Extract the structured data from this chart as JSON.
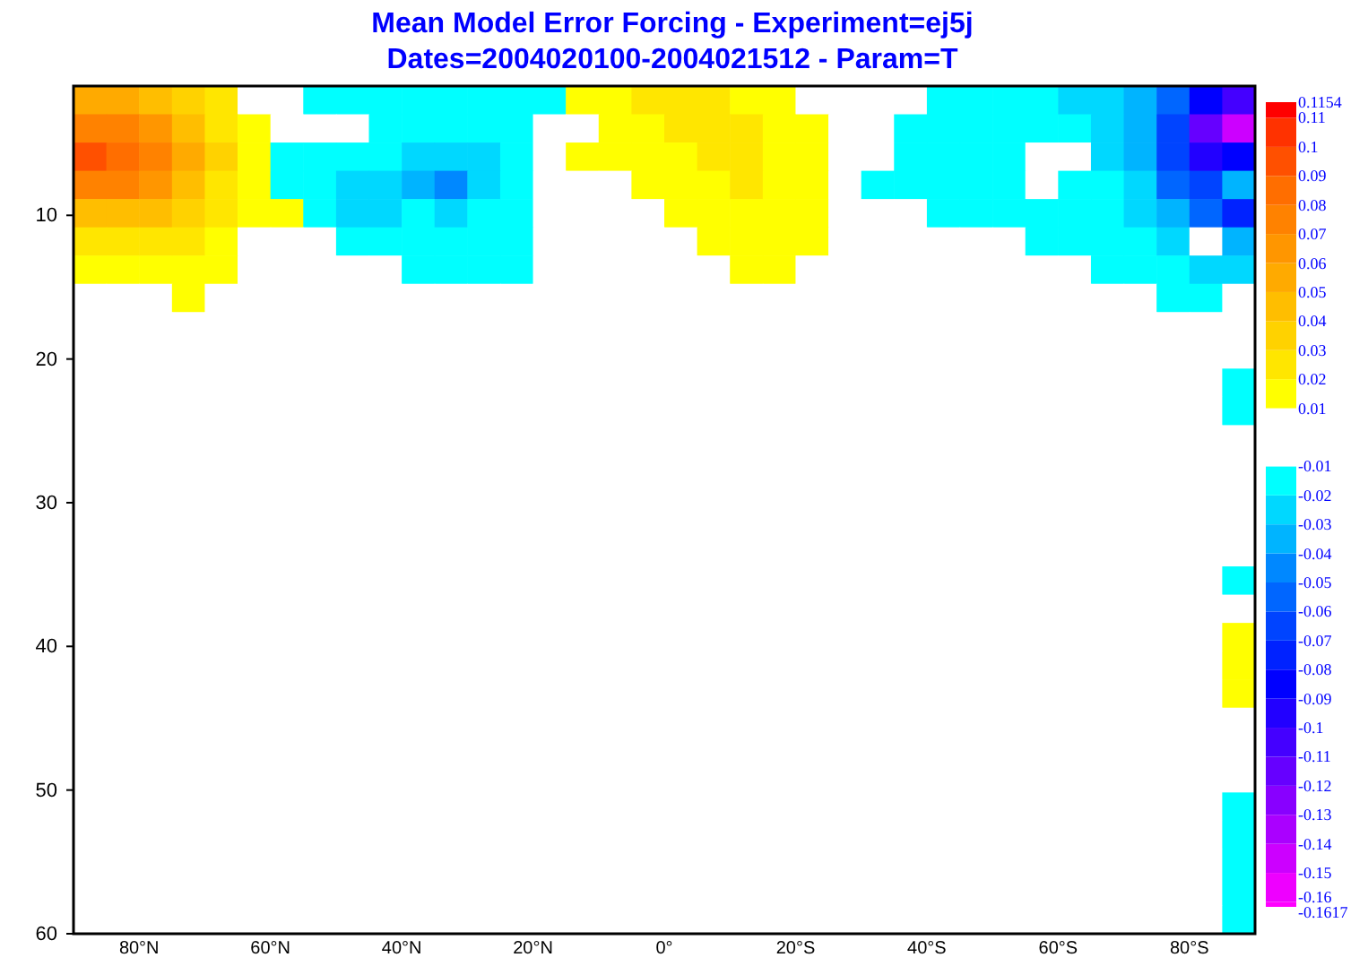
{
  "chart_data": {
    "type": "heatmap",
    "title": "Mean Model Error Forcing - Experiment=ej5j",
    "subtitle": "Dates=2004020100-2004021512 - Param=T",
    "x": [
      87.5,
      82.5,
      77.5,
      72.5,
      67.5,
      62.5,
      57.5,
      52.5,
      47.5,
      42.5,
      37.5,
      32.5,
      27.5,
      22.5,
      17.5,
      12.5,
      7.5,
      2.5,
      -2.5,
      -7.5,
      -12.5,
      -17.5,
      -22.5,
      -27.5,
      -32.5,
      -37.5,
      -42.5,
      -47.5,
      -52.5,
      -57.5,
      -62.5,
      -67.5,
      -72.5,
      -77.5,
      -82.5,
      -87.5
    ],
    "xlim": [
      90,
      -90
    ],
    "xticks": [
      {
        "value": 80,
        "label": "80°N"
      },
      {
        "value": 60,
        "label": "60°N"
      },
      {
        "value": 40,
        "label": "40°N"
      },
      {
        "value": 20,
        "label": "20°N"
      },
      {
        "value": 0,
        "label": "0°"
      },
      {
        "value": -20,
        "label": "20°S"
      },
      {
        "value": -40,
        "label": "40°S"
      },
      {
        "value": -60,
        "label": "60°S"
      },
      {
        "value": -80,
        "label": "80°S"
      }
    ],
    "ylim": [
      60,
      1
    ],
    "yticks": [
      10,
      20,
      30,
      40,
      50,
      60
    ],
    "cells": [
      [
        0.06,
        0.06,
        0.05,
        0.04,
        0.025,
        0,
        0,
        -0.012,
        -0.012,
        -0.012,
        -0.015,
        -0.015,
        -0.015,
        -0.012,
        -0.012,
        0.012,
        0.02,
        0.025,
        0.03,
        0.025,
        0.02,
        0.015,
        0,
        0,
        0,
        0,
        -0.012,
        -0.015,
        -0.015,
        -0.015,
        -0.02,
        -0.025,
        -0.035,
        -0.05,
        -0.08,
        -0.1
      ],
      [
        0.08,
        0.08,
        0.07,
        0.05,
        0.03,
        0.012,
        0,
        0,
        0,
        -0.012,
        -0.015,
        -0.015,
        -0.015,
        -0.012,
        0,
        0,
        0.015,
        0.02,
        0.025,
        0.025,
        0.025,
        0.015,
        0.012,
        0,
        0,
        -0.012,
        -0.015,
        -0.015,
        -0.015,
        -0.015,
        -0.015,
        -0.02,
        -0.03,
        -0.06,
        -0.11,
        -0.14
      ],
      [
        0.1,
        0.09,
        0.075,
        0.055,
        0.035,
        0.015,
        -0.012,
        -0.015,
        -0.015,
        -0.015,
        -0.025,
        -0.025,
        -0.025,
        -0.015,
        0,
        0.012,
        0.012,
        0.015,
        0.02,
        0.025,
        0.025,
        0.02,
        0.012,
        0,
        0,
        -0.012,
        -0.015,
        -0.015,
        -0.015,
        0,
        0,
        -0.02,
        -0.03,
        -0.06,
        -0.09,
        -0.08
      ],
      [
        0.08,
        0.08,
        0.065,
        0.05,
        0.03,
        0.015,
        -0.012,
        -0.015,
        -0.025,
        -0.025,
        -0.035,
        -0.04,
        -0.025,
        -0.015,
        0,
        0,
        0,
        0.012,
        0.015,
        0.02,
        0.025,
        0.02,
        0.015,
        0,
        -0.012,
        -0.012,
        -0.015,
        -0.015,
        -0.015,
        0,
        -0.012,
        -0.015,
        -0.025,
        -0.05,
        -0.06,
        -0.03
      ],
      [
        0.05,
        0.05,
        0.045,
        0.04,
        0.025,
        0.015,
        0.012,
        -0.012,
        -0.02,
        -0.025,
        -0.015,
        -0.025,
        -0.015,
        -0.015,
        0,
        0,
        0,
        0,
        0.012,
        0.015,
        0.02,
        0.02,
        0.012,
        0,
        0,
        0,
        -0.012,
        -0.012,
        -0.012,
        -0.015,
        -0.015,
        -0.015,
        -0.025,
        -0.035,
        -0.05,
        -0.07
      ],
      [
        0.03,
        0.03,
        0.025,
        0.025,
        0.02,
        0,
        0,
        0,
        -0.012,
        -0.015,
        -0.015,
        -0.015,
        -0.012,
        -0.012,
        0,
        0,
        0,
        0,
        0,
        0.012,
        0.015,
        0.015,
        0.012,
        0,
        0,
        0,
        0,
        0,
        0,
        -0.012,
        -0.012,
        -0.012,
        -0.015,
        -0.025,
        0,
        -0.03
      ],
      [
        0.015,
        0.015,
        0.015,
        0.015,
        0.015,
        0,
        0,
        0,
        0,
        0,
        -0.012,
        -0.012,
        -0.012,
        -0.012,
        0,
        0,
        0,
        0,
        0,
        0,
        0.012,
        0.012,
        0,
        0,
        0,
        0,
        0,
        0,
        0,
        0,
        0,
        -0.012,
        -0.012,
        -0.015,
        -0.02,
        -0.02
      ],
      [
        0,
        0,
        0,
        0.012,
        0,
        0,
        0,
        0,
        0,
        0,
        0,
        0,
        0,
        0,
        0,
        0,
        0,
        0,
        0,
        0,
        0,
        0,
        0,
        0,
        0,
        0,
        0,
        0,
        0,
        0,
        0,
        0,
        0,
        -0.012,
        -0.012,
        0
      ],
      [
        0,
        0,
        0,
        0,
        0,
        0,
        0,
        0,
        0,
        0,
        0,
        0,
        0,
        0,
        0,
        0,
        0,
        0,
        0,
        0,
        0,
        0,
        0,
        0,
        0,
        0,
        0,
        0,
        0,
        0,
        0,
        0,
        0,
        0,
        0,
        0
      ],
      [
        0,
        0,
        0,
        0,
        0,
        0,
        0,
        0,
        0,
        0,
        0,
        0,
        0,
        0,
        0,
        0,
        0,
        0,
        0,
        0,
        0,
        0,
        0,
        0,
        0,
        0,
        0,
        0,
        0,
        0,
        0,
        0,
        0,
        0,
        0,
        0
      ],
      [
        0,
        0,
        0,
        0,
        0,
        0,
        0,
        0,
        0,
        0,
        0,
        0,
        0,
        0,
        0,
        0,
        0,
        0,
        0,
        0,
        0,
        0,
        0,
        0,
        0,
        0,
        0,
        0,
        0,
        0,
        0,
        0,
        0,
        0,
        0,
        -0.012
      ],
      [
        0,
        0,
        0,
        0,
        0,
        0,
        0,
        0,
        0,
        0,
        0,
        0,
        0,
        0,
        0,
        0,
        0,
        0,
        0,
        0,
        0,
        0,
        0,
        0,
        0,
        0,
        0,
        0,
        0,
        0,
        0,
        0,
        0,
        0,
        0,
        -0.012
      ],
      [
        0,
        0,
        0,
        0,
        0,
        0,
        0,
        0,
        0,
        0,
        0,
        0,
        0,
        0,
        0,
        0,
        0,
        0,
        0,
        0,
        0,
        0,
        0,
        0,
        0,
        0,
        0,
        0,
        0,
        0,
        0,
        0,
        0,
        0,
        0,
        0
      ],
      [
        0,
        0,
        0,
        0,
        0,
        0,
        0,
        0,
        0,
        0,
        0,
        0,
        0,
        0,
        0,
        0,
        0,
        0,
        0,
        0,
        0,
        0,
        0,
        0,
        0,
        0,
        0,
        0,
        0,
        0,
        0,
        0,
        0,
        0,
        0,
        0
      ],
      [
        0,
        0,
        0,
        0,
        0,
        0,
        0,
        0,
        0,
        0,
        0,
        0,
        0,
        0,
        0,
        0,
        0,
        0,
        0,
        0,
        0,
        0,
        0,
        0,
        0,
        0,
        0,
        0,
        0,
        0,
        0,
        0,
        0,
        0,
        0,
        0
      ],
      [
        0,
        0,
        0,
        0,
        0,
        0,
        0,
        0,
        0,
        0,
        0,
        0,
        0,
        0,
        0,
        0,
        0,
        0,
        0,
        0,
        0,
        0,
        0,
        0,
        0,
        0,
        0,
        0,
        0,
        0,
        0,
        0,
        0,
        0,
        0,
        0
      ],
      [
        0,
        0,
        0,
        0,
        0,
        0,
        0,
        0,
        0,
        0,
        0,
        0,
        0,
        0,
        0,
        0,
        0,
        0,
        0,
        0,
        0,
        0,
        0,
        0,
        0,
        0,
        0,
        0,
        0,
        0,
        0,
        0,
        0,
        0,
        0,
        0
      ],
      [
        0,
        0,
        0,
        0,
        0,
        0,
        0,
        0,
        0,
        0,
        0,
        0,
        0,
        0,
        0,
        0,
        0,
        0,
        0,
        0,
        0,
        0,
        0,
        0,
        0,
        0,
        0,
        0,
        0,
        0,
        0,
        0,
        0,
        0,
        0,
        -0.012
      ],
      [
        0,
        0,
        0,
        0,
        0,
        0,
        0,
        0,
        0,
        0,
        0,
        0,
        0,
        0,
        0,
        0,
        0,
        0,
        0,
        0,
        0,
        0,
        0,
        0,
        0,
        0,
        0,
        0,
        0,
        0,
        0,
        0,
        0,
        0,
        0,
        0
      ],
      [
        0,
        0,
        0,
        0,
        0,
        0,
        0,
        0,
        0,
        0,
        0,
        0,
        0,
        0,
        0,
        0,
        0,
        0,
        0,
        0,
        0,
        0,
        0,
        0,
        0,
        0,
        0,
        0,
        0,
        0,
        0,
        0,
        0,
        0,
        0,
        0.012
      ],
      [
        0,
        0,
        0,
        0,
        0,
        0,
        0,
        0,
        0,
        0,
        0,
        0,
        0,
        0,
        0,
        0,
        0,
        0,
        0,
        0,
        0,
        0,
        0,
        0,
        0,
        0,
        0,
        0,
        0,
        0,
        0,
        0,
        0,
        0,
        0,
        0.012
      ],
      [
        0,
        0,
        0,
        0,
        0,
        0,
        0,
        0,
        0,
        0,
        0,
        0,
        0,
        0,
        0,
        0,
        0,
        0,
        0,
        0,
        0,
        0,
        0,
        0,
        0,
        0,
        0,
        0,
        0,
        0,
        0,
        0,
        0,
        0,
        0,
        0.012
      ],
      [
        0,
        0,
        0,
        0,
        0,
        0,
        0,
        0,
        0,
        0,
        0,
        0,
        0,
        0,
        0,
        0,
        0,
        0,
        0,
        0,
        0,
        0,
        0,
        0,
        0,
        0,
        0,
        0,
        0,
        0,
        0,
        0,
        0,
        0,
        0,
        0
      ],
      [
        0,
        0,
        0,
        0,
        0,
        0,
        0,
        0,
        0,
        0,
        0,
        0,
        0,
        0,
        0,
        0,
        0,
        0,
        0,
        0,
        0,
        0,
        0,
        0,
        0,
        0,
        0,
        0,
        0,
        0,
        0,
        0,
        0,
        0,
        0,
        0
      ],
      [
        0,
        0,
        0,
        0,
        0,
        0,
        0,
        0,
        0,
        0,
        0,
        0,
        0,
        0,
        0,
        0,
        0,
        0,
        0,
        0,
        0,
        0,
        0,
        0,
        0,
        0,
        0,
        0,
        0,
        0,
        0,
        0,
        0,
        0,
        0,
        0
      ],
      [
        0,
        0,
        0,
        0,
        0,
        0,
        0,
        0,
        0,
        0,
        0,
        0,
        0,
        0,
        0,
        0,
        0,
        0,
        0,
        0,
        0,
        0,
        0,
        0,
        0,
        0,
        0,
        0,
        0,
        0,
        0,
        0,
        0,
        0,
        0,
        -0.012
      ],
      [
        0,
        0,
        0,
        0,
        0,
        0,
        0,
        0,
        0,
        0,
        0,
        0,
        0,
        0,
        0,
        0,
        0,
        0,
        0,
        0,
        0,
        0,
        0,
        0,
        0,
        0,
        0,
        0,
        0,
        0,
        0,
        0,
        0,
        0,
        0,
        -0.012
      ],
      [
        0,
        0,
        0,
        0,
        0,
        0,
        0,
        0,
        0,
        0,
        0,
        0,
        0,
        0,
        0,
        0,
        0,
        0,
        0,
        0,
        0,
        0,
        0,
        0,
        0,
        0,
        0,
        0,
        0,
        0,
        0,
        0,
        0,
        0,
        0,
        -0.012
      ],
      [
        0,
        0,
        0,
        0,
        0,
        0,
        0,
        0,
        0,
        0,
        0,
        0,
        0,
        0,
        0,
        0,
        0,
        0,
        0,
        0,
        0,
        0,
        0,
        0,
        0,
        0,
        0,
        0,
        0,
        0,
        0,
        0,
        0,
        0,
        0,
        -0.012
      ],
      [
        0,
        0,
        0,
        0,
        0,
        0,
        0,
        0,
        0,
        0,
        0,
        0,
        0,
        0,
        0,
        0,
        0,
        0,
        0,
        0,
        0,
        0,
        0,
        0,
        0,
        0,
        0,
        0,
        0,
        0,
        0,
        0,
        0,
        0,
        0,
        -0.012
      ]
    ],
    "cticks": [
      -0.1617,
      -0.16,
      -0.15,
      -0.14,
      -0.13,
      -0.12,
      -0.11,
      -0.1,
      -0.09,
      -0.08,
      -0.07,
      -0.06,
      -0.05,
      -0.04,
      -0.03,
      -0.02,
      -0.01,
      0.01,
      0.02,
      0.03,
      0.04,
      0.05,
      0.06,
      0.07,
      0.08,
      0.09,
      0.1,
      0.11,
      0.1154
    ],
    "colors": [
      "#ff00ff",
      "#ee00ff",
      "#cc00ff",
      "#aa00ff",
      "#8800ff",
      "#6600ff",
      "#4400ff",
      "#2200ff",
      "#0000ff",
      "#0022ff",
      "#0044ff",
      "#0066ff",
      "#0088ff",
      "#00b4ff",
      "#00d8ff",
      "#00ffff",
      "#ffffff",
      "#ffff00",
      "#ffe600",
      "#ffd200",
      "#ffbe00",
      "#ffaa00",
      "#ff9600",
      "#ff8200",
      "#ff6e00",
      "#ff5000",
      "#ff3200",
      "#ff0000"
    ]
  }
}
